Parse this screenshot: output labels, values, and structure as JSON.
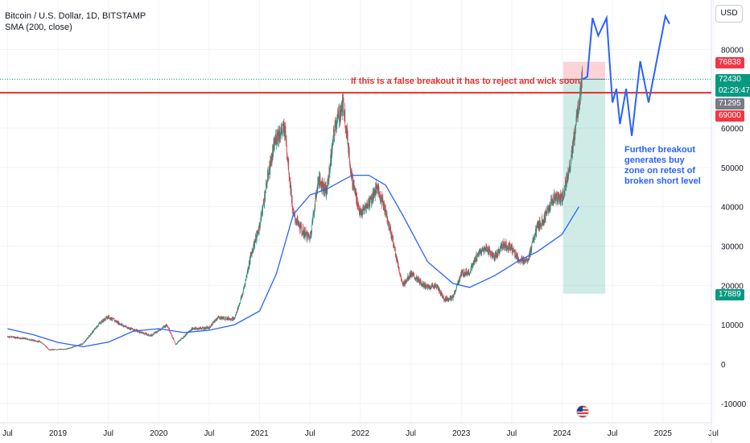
{
  "header": {
    "title": "Bitcoin / U.S. Dollar, 1D, BITSTAMP",
    "indicator": "SMA (200, close)"
  },
  "currency_button": "USD",
  "annotations": {
    "red_note": "If this is a false breakout it has to reject and wick soon",
    "blue_note": "Further breakout generates buy zone on retest of broken short level"
  },
  "price_tags": {
    "stop": {
      "value": "76838",
      "color": "#f23645"
    },
    "current": {
      "value": "72430",
      "timer": "02:29:47",
      "color": "#089981"
    },
    "sma_level": {
      "value": "71295",
      "color": "#787b86"
    },
    "resistance": {
      "value": "69000",
      "color": "#f23645"
    },
    "target": {
      "value": "17889",
      "color": "#089981"
    }
  },
  "colors": {
    "up": "#089981",
    "down": "#f23645",
    "sma": "#2962ff",
    "resistance_line": "#e62e2e",
    "projection": "#2962ff",
    "stop_zone": "rgba(242,54,69,0.22)",
    "target_zone": "rgba(8,153,129,0.20)"
  },
  "chart_data": {
    "type": "candlestick",
    "title": "Bitcoin / U.S. Dollar, 1D, BITSTAMP",
    "xlabel": "",
    "ylabel": "",
    "x_ticks": [
      "Jul",
      "2019",
      "Jul",
      "2020",
      "Jul",
      "2021",
      "Jul",
      "2022",
      "Jul",
      "2023",
      "Jul",
      "2024",
      "Jul",
      "2025",
      "Jul"
    ],
    "y_ticks": [
      -10000,
      0,
      10000,
      20000,
      30000,
      40000,
      50000,
      60000,
      80000
    ],
    "ylim": [
      -14000,
      96000
    ],
    "grid": true,
    "price_path": [
      [
        "2018-07",
        7000
      ],
      [
        "2018-09",
        6500
      ],
      [
        "2018-11",
        5600
      ],
      [
        "2018-12",
        3600
      ],
      [
        "2019-02",
        3800
      ],
      [
        "2019-04",
        5200
      ],
      [
        "2019-06",
        10500
      ],
      [
        "2019-07",
        12000
      ],
      [
        "2019-09",
        9500
      ],
      [
        "2019-11",
        8000
      ],
      [
        "2019-12",
        7200
      ],
      [
        "2020-02",
        10000
      ],
      [
        "2020-03",
        5000
      ],
      [
        "2020-05",
        9000
      ],
      [
        "2020-07",
        9200
      ],
      [
        "2020-08",
        11800
      ],
      [
        "2020-10",
        11500
      ],
      [
        "2020-11",
        18000
      ],
      [
        "2020-12",
        28000
      ],
      [
        "2021-01",
        35000
      ],
      [
        "2021-02",
        48000
      ],
      [
        "2021-03",
        58000
      ],
      [
        "2021-04",
        60000
      ],
      [
        "2021-05",
        38000
      ],
      [
        "2021-06",
        34000
      ],
      [
        "2021-07",
        32000
      ],
      [
        "2021-08",
        47000
      ],
      [
        "2021-09",
        44000
      ],
      [
        "2021-10",
        61000
      ],
      [
        "2021-11",
        66000
      ],
      [
        "2021-12",
        47000
      ],
      [
        "2022-01",
        38000
      ],
      [
        "2022-02",
        41000
      ],
      [
        "2022-03",
        45000
      ],
      [
        "2022-04",
        39000
      ],
      [
        "2022-05",
        30000
      ],
      [
        "2022-06",
        20000
      ],
      [
        "2022-07",
        23000
      ],
      [
        "2022-08",
        21000
      ],
      [
        "2022-09",
        19500
      ],
      [
        "2022-10",
        20000
      ],
      [
        "2022-11",
        16500
      ],
      [
        "2022-12",
        16800
      ],
      [
        "2023-01",
        23000
      ],
      [
        "2023-02",
        23500
      ],
      [
        "2023-03",
        28000
      ],
      [
        "2023-04",
        29500
      ],
      [
        "2023-05",
        27000
      ],
      [
        "2023-06",
        30500
      ],
      [
        "2023-07",
        29500
      ],
      [
        "2023-08",
        26000
      ],
      [
        "2023-09",
        27000
      ],
      [
        "2023-10",
        34500
      ],
      [
        "2023-11",
        37500
      ],
      [
        "2023-12",
        42500
      ],
      [
        "2024-01",
        42000
      ],
      [
        "2024-02",
        51000
      ],
      [
        "2024-03",
        66000
      ],
      [
        "2024-03-14",
        72430
      ]
    ],
    "sma_200": [
      [
        "2018-07",
        9000
      ],
      [
        "2018-10",
        7500
      ],
      [
        "2019-01",
        5500
      ],
      [
        "2019-04",
        4400
      ],
      [
        "2019-07",
        5600
      ],
      [
        "2019-10",
        8400
      ],
      [
        "2020-01",
        9000
      ],
      [
        "2020-04",
        8000
      ],
      [
        "2020-07",
        8600
      ],
      [
        "2020-10",
        10000
      ],
      [
        "2021-01",
        13500
      ],
      [
        "2021-03",
        23000
      ],
      [
        "2021-05",
        38000
      ],
      [
        "2021-07",
        43000
      ],
      [
        "2021-09",
        44500
      ],
      [
        "2021-12",
        48000
      ],
      [
        "2022-02",
        48000
      ],
      [
        "2022-04",
        45500
      ],
      [
        "2022-06",
        38000
      ],
      [
        "2022-09",
        26000
      ],
      [
        "2022-12",
        20500
      ],
      [
        "2023-02",
        19500
      ],
      [
        "2023-05",
        22500
      ],
      [
        "2023-08",
        26500
      ],
      [
        "2023-10",
        28500
      ],
      [
        "2024-01",
        33000
      ],
      [
        "2024-03",
        40000
      ]
    ],
    "levels": {
      "resistance": 69000,
      "stop": 76838,
      "target": 17889,
      "entry": 72430
    },
    "projection": [
      [
        "2024-03-14",
        72430
      ],
      [
        "2024-04",
        73000
      ],
      [
        "2024-04-20",
        88000
      ],
      [
        "2024-05-10",
        83500
      ],
      [
        "2024-06-10",
        88000
      ],
      [
        "2024-07-01",
        66500
      ],
      [
        "2024-07-15",
        70000
      ],
      [
        "2024-07-28",
        61000
      ],
      [
        "2024-08-20",
        70000
      ],
      [
        "2024-09-10",
        58000
      ],
      [
        "2024-10-10",
        77000
      ],
      [
        "2024-11-10",
        66500
      ],
      [
        "2025-01-10",
        88500
      ],
      [
        "2025-01-25",
        86500
      ]
    ]
  }
}
